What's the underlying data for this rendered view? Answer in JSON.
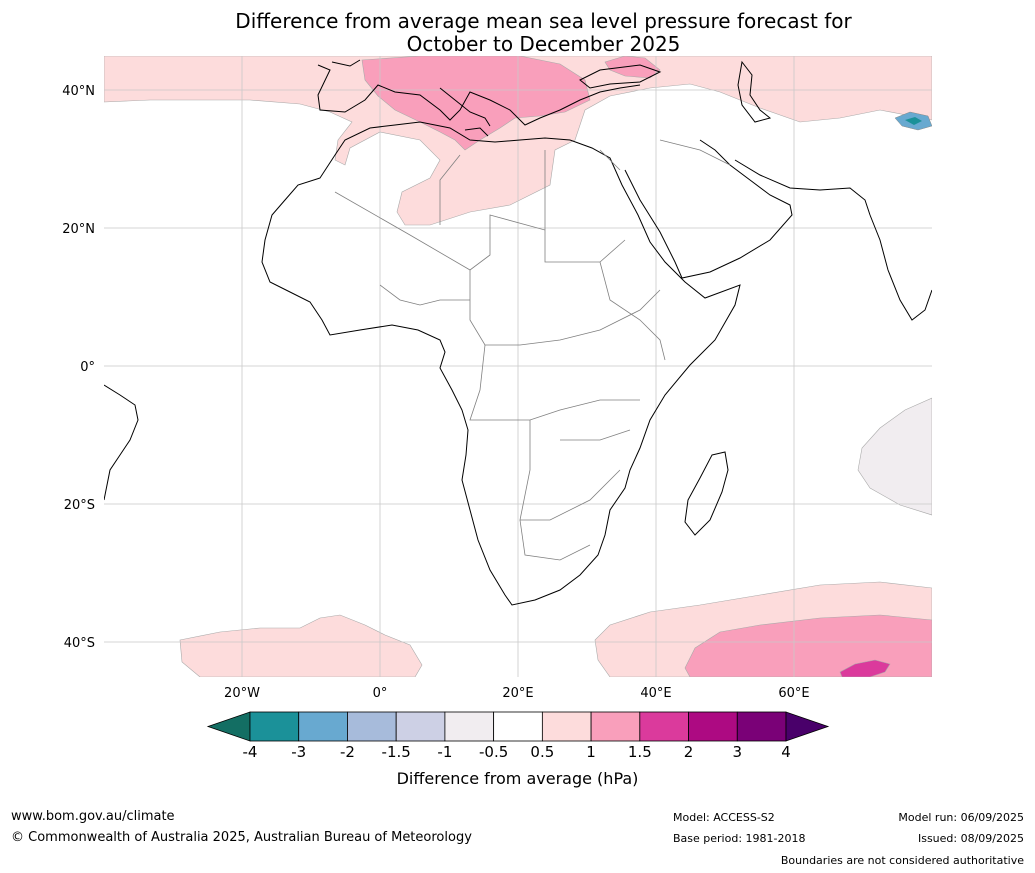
{
  "title_line1": "Difference from average mean sea level pressure forecast for",
  "title_line2": "October to December 2025",
  "lat_labels": [
    "40°N",
    "20°N",
    "0°",
    "20°S",
    "40°S"
  ],
  "lon_labels": [
    "20°W",
    "0°",
    "20°E",
    "40°E",
    "60°E"
  ],
  "colorbar": {
    "title": "Difference from average (hPa)",
    "ticks": [
      "-4",
      "-3",
      "-2",
      "-1.5",
      "-1",
      "-0.5",
      "0.5",
      "1",
      "1.5",
      "2",
      "3",
      "4"
    ],
    "colors": [
      "#136e63",
      "#1b9199",
      "#68a9d0",
      "#a7bbdb",
      "#cdd0e5",
      "#f1edf0",
      "#ffffff",
      "#fddcdc",
      "#f99fbb",
      "#db3a9c",
      "#ad0a82",
      "#7a0177",
      "#49006a"
    ]
  },
  "footer": {
    "website": "www.bom.gov.au/climate",
    "copyright": "© Commonwealth of Australia 2025, Australian Bureau of Meteorology",
    "model": "Model: ACCESS-S2",
    "base_period": "Base period: 1981-2018",
    "model_run": "Model run: 06/09/2025",
    "issued": "Issued: 08/09/2025",
    "disclaimer": "Boundaries are not considered authoritative"
  }
}
